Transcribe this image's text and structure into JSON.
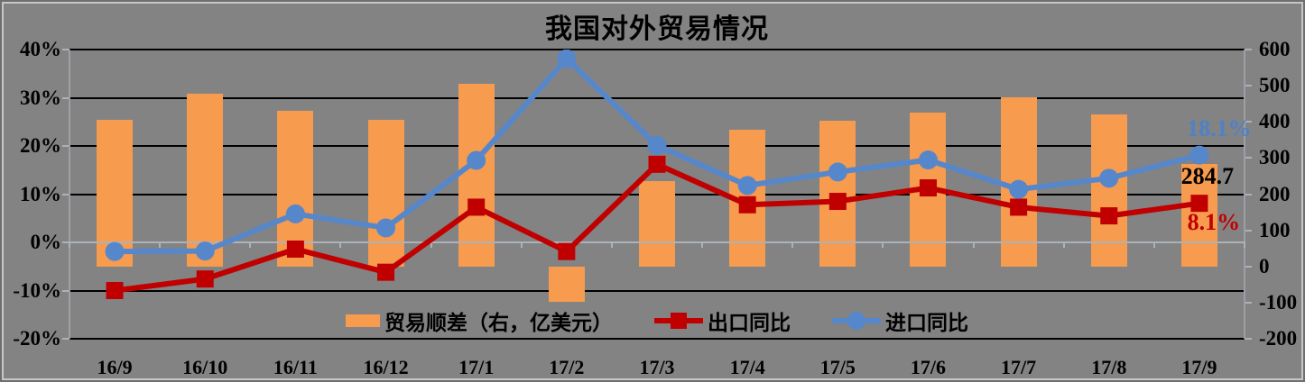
{
  "title": "我国对外贸易情况",
  "colors": {
    "background": "#838383",
    "bar": "#F79B4E",
    "export": "#C00000",
    "import": "#5787CB",
    "gridline": "#000000",
    "zero_axis": "#ACB2B8",
    "axis_line": "#9BA0A4"
  },
  "legend": {
    "items": [
      {
        "label": "贸易顺差（右，亿美元）",
        "swatch": "bar"
      },
      {
        "label": "出口同比",
        "swatch": "line-square"
      },
      {
        "label": "进口同比",
        "swatch": "line-circle"
      }
    ]
  },
  "chart_data": {
    "type": "combo-bar-line",
    "title": "我国对外贸易情况",
    "categories": [
      "16/9",
      "16/10",
      "16/11",
      "16/12",
      "17/1",
      "17/2",
      "17/3",
      "17/4",
      "17/5",
      "17/6",
      "17/7",
      "17/8",
      "17/9"
    ],
    "series": [
      {
        "name": "贸易顺差（右，亿美元）",
        "type": "bar",
        "axis": "right",
        "color_key": "bar",
        "values": [
          405,
          478,
          430,
          406,
          505,
          -97,
          237,
          378,
          404,
          426,
          468,
          420,
          284.7
        ]
      },
      {
        "name": "出口同比",
        "type": "line",
        "marker": "square",
        "axis": "left",
        "color_key": "export",
        "values": [
          -10.0,
          -7.6,
          -1.4,
          -6.2,
          7.3,
          -1.9,
          16.2,
          7.8,
          8.5,
          11.3,
          7.3,
          5.5,
          8.1
        ]
      },
      {
        "name": "进口同比",
        "type": "line",
        "marker": "circle",
        "axis": "left",
        "color_key": "import",
        "values": [
          -1.9,
          -1.8,
          5.9,
          3.0,
          17.0,
          38.1,
          20.1,
          11.8,
          14.6,
          17.1,
          11.0,
          13.3,
          18.1
        ]
      }
    ],
    "left_axis": {
      "min": -20,
      "max": 40,
      "step": 10,
      "unit": "%",
      "tick_labels": [
        "40%",
        "30%",
        "20%",
        "10%",
        "0%",
        "-10%",
        "-20%"
      ]
    },
    "right_axis": {
      "min": -200,
      "max": 600,
      "step": 100,
      "tick_labels": [
        "600",
        "500",
        "400",
        "300",
        "200",
        "100",
        "0",
        "-100",
        "-200"
      ]
    },
    "grid": "horizontal",
    "legend_position": "bottom-inside",
    "annotations": [
      {
        "id": "import_yoy_last",
        "text": "18.1%",
        "color": "#4D82C8"
      },
      {
        "id": "surplus_last",
        "text": "284.7",
        "color": "#000000"
      },
      {
        "id": "export_yoy_last",
        "text": "8.1%",
        "color": "#C00000"
      }
    ]
  }
}
